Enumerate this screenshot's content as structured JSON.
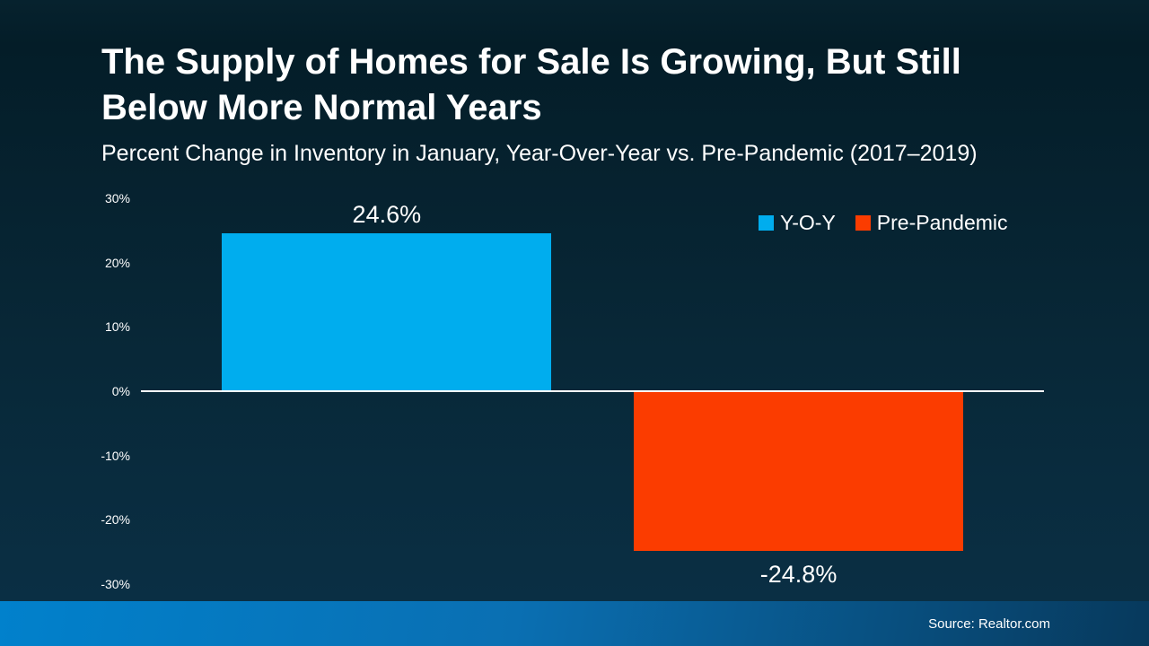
{
  "header": {
    "title": "The Supply of Homes for Sale Is Growing, But Still Below More Normal Years",
    "subtitle": "Percent Change in Inventory in January, Year-Over-Year vs. Pre-Pandemic (2017–2019)"
  },
  "chart_data": {
    "type": "bar",
    "title": "The Supply of Homes for Sale Is Growing, But Still Below More Normal Years",
    "subtitle": "Percent Change in Inventory in January, Year-Over-Year vs. Pre-Pandemic (2017–2019)",
    "series": [
      {
        "name": "Y-O-Y",
        "value": 24.6,
        "data_label": "24.6%",
        "color": "#00ADEE"
      },
      {
        "name": "Pre-Pandemic",
        "value": -24.8,
        "data_label": "-24.8%",
        "color": "#FB3C00"
      }
    ],
    "ylim": [
      -30,
      30
    ],
    "yticks": [
      {
        "value": 30,
        "label": "30%"
      },
      {
        "value": 20,
        "label": "20%"
      },
      {
        "value": 10,
        "label": "10%"
      },
      {
        "value": 0,
        "label": "0%"
      },
      {
        "value": -10,
        "label": "-10%"
      },
      {
        "value": -20,
        "label": "-20%"
      },
      {
        "value": -30,
        "label": "-30%"
      }
    ],
    "grid": false,
    "legend_position": "top-right",
    "baseline_color": "#FFFFFF",
    "bar_width_frac": 0.3648,
    "bar_centers_frac": [
      0.2722,
      0.7282
    ]
  },
  "footer": {
    "source": "Source: Realtor.com"
  },
  "colors": {
    "background_top": "#06222E",
    "background_bottom": "#0B3147",
    "bar_positive": "#00ADEE",
    "bar_negative": "#FB3C00",
    "footer_gradient_left": "#0181CC",
    "footer_gradient_right": "#07395C",
    "text": "#FFFFFF"
  }
}
